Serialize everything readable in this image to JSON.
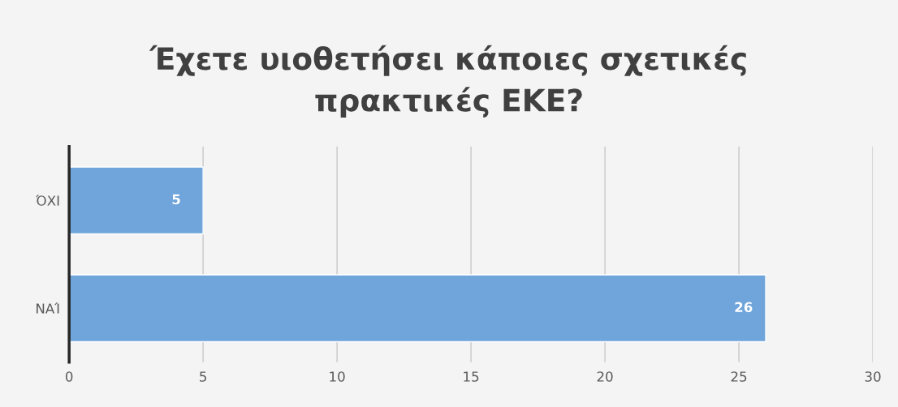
{
  "chart_data": {
    "type": "bar",
    "orientation": "horizontal",
    "title": "Έχετε υιοθετήσει κάποιες σχετικές\nπρακτικές ΕΚΕ?",
    "categories": [
      "ΌΧΙ",
      "ΝΑΊ"
    ],
    "values": [
      5,
      26
    ],
    "color": "#6fa5db",
    "xlim": [
      0,
      30
    ],
    "xticks": [
      0,
      5,
      10,
      15,
      20,
      25,
      30
    ],
    "grid": "x",
    "data_labels": true
  }
}
